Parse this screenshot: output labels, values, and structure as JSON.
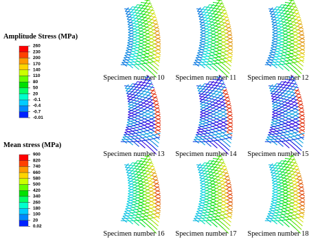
{
  "legends": [
    {
      "title": "Amplitude Stress (MPa)",
      "labels": [
        "260",
        "230",
        "200",
        "170",
        "140",
        "110",
        "80",
        "50",
        "20",
        "-0.1",
        "-0.4",
        "-0.7",
        "-0.01"
      ]
    },
    {
      "title": "Mean stress (MPa)",
      "labels": [
        "900",
        "820",
        "740",
        "660",
        "580",
        "500",
        "420",
        "340",
        "260",
        "180",
        "100",
        "20",
        "0.02"
      ]
    }
  ],
  "panels": [
    {
      "caption": "Specimen number 10"
    },
    {
      "caption": "Specimen number 11"
    },
    {
      "caption": "Specimen number 12"
    },
    {
      "caption": "Specimen number 13"
    },
    {
      "caption": "Specimen number 14"
    },
    {
      "caption": "Specimen number 15"
    },
    {
      "caption": "Specimen number 16"
    },
    {
      "caption": "Specimen number 17"
    },
    {
      "caption": "Specimen number 18"
    }
  ]
}
